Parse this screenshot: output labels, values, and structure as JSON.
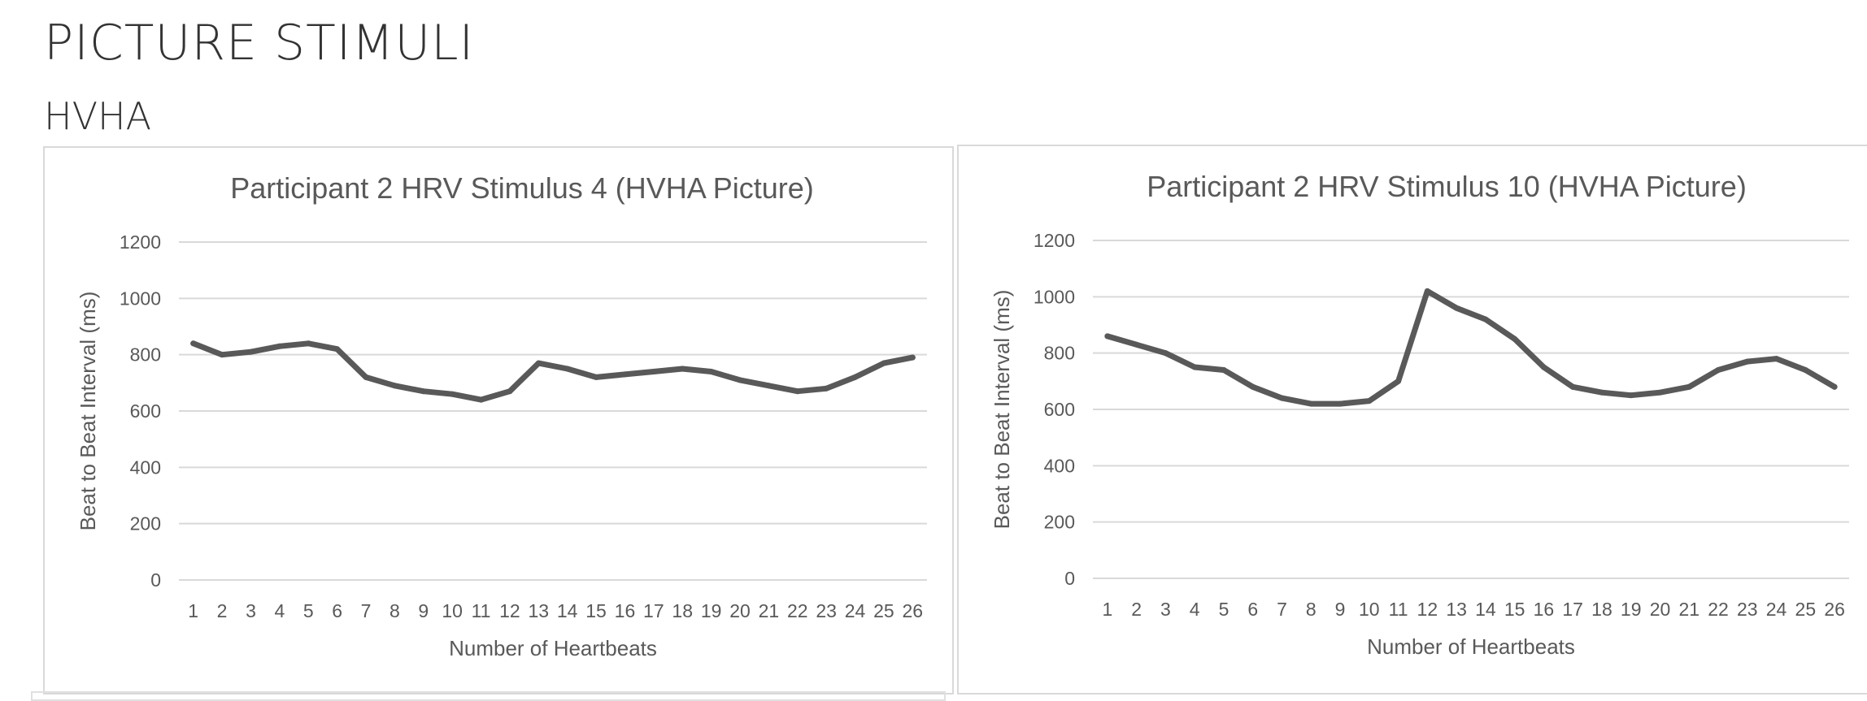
{
  "header": {
    "title": "PICTURE STIMULI",
    "section": "HVHA"
  },
  "chart_data": [
    {
      "type": "line",
      "title": "Participant 2 HRV Stimulus 4 (HVHA Picture)",
      "xlabel": "Number of Heartbeats",
      "ylabel": "Beat to Beat Interval (ms)",
      "ylim": [
        0,
        1200
      ],
      "yticks": [
        0,
        200,
        400,
        600,
        800,
        1000,
        1200
      ],
      "categories": [
        "1",
        "2",
        "3",
        "4",
        "5",
        "6",
        "7",
        "8",
        "9",
        "10",
        "11",
        "12",
        "13",
        "14",
        "15",
        "16",
        "17",
        "18",
        "19",
        "20",
        "21",
        "22",
        "23",
        "24",
        "25",
        "26"
      ],
      "grid": true,
      "legend": "none",
      "series": [
        {
          "color": "#595959",
          "values": [
            840,
            800,
            810,
            830,
            840,
            820,
            720,
            690,
            670,
            660,
            640,
            670,
            770,
            750,
            720,
            730,
            740,
            750,
            740,
            710,
            690,
            670,
            680,
            720,
            770,
            790
          ]
        }
      ]
    },
    {
      "type": "line",
      "title": "Participant 2 HRV Stimulus 10 (HVHA Picture)",
      "xlabel": "Number of Heartbeats",
      "ylabel": "Beat to Beat Interval (ms)",
      "ylim": [
        0,
        1200
      ],
      "yticks": [
        0,
        200,
        400,
        600,
        800,
        1000,
        1200
      ],
      "categories": [
        "1",
        "2",
        "3",
        "4",
        "5",
        "6",
        "7",
        "8",
        "9",
        "10",
        "11",
        "12",
        "13",
        "14",
        "15",
        "16",
        "17",
        "18",
        "19",
        "20",
        "21",
        "22",
        "23",
        "24",
        "25",
        "26"
      ],
      "grid": true,
      "legend": "none",
      "series": [
        {
          "color": "#595959",
          "values": [
            860,
            830,
            800,
            750,
            740,
            680,
            640,
            620,
            620,
            630,
            700,
            1020,
            960,
            920,
            850,
            750,
            680,
            660,
            650,
            660,
            680,
            740,
            770,
            780,
            740,
            680
          ]
        }
      ]
    }
  ]
}
